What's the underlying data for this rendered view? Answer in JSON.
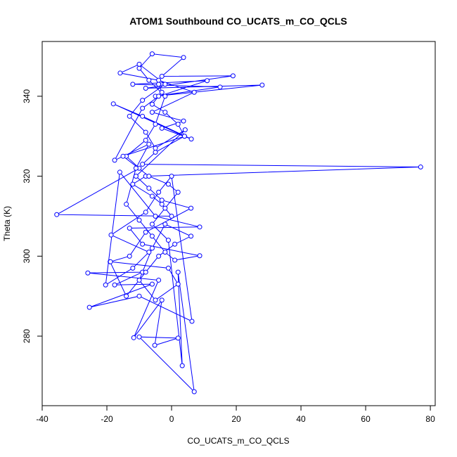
{
  "chart_data": {
    "type": "scatter",
    "title": "ATOM1 Southbound CO_UCATS_m_CO_QCLS",
    "x_label": "CO_UCATS_m_CO_QCLS",
    "y_label": "Theta (K)",
    "color": "#0000ff",
    "xlim": [
      -40,
      81.5
    ],
    "ylim": [
      262.6,
      353.7
    ],
    "xticks": [
      -40,
      -20,
      0,
      20,
      40,
      60,
      80
    ],
    "yticks": [
      280,
      300,
      320,
      340
    ],
    "x": [
      -4,
      -3,
      -6,
      -2,
      2,
      4,
      -5,
      -9,
      77,
      -8,
      -12,
      -6,
      -3,
      0,
      -35.5,
      -10,
      -14,
      -8,
      -5,
      -2,
      -7,
      -10,
      -6,
      3.7,
      -3,
      19,
      -8,
      28,
      -5,
      15,
      -12,
      11,
      -4,
      -9,
      -17.6,
      -7,
      -11,
      -14,
      -10,
      -6,
      -2,
      1,
      8.7,
      -9,
      -13,
      8.7,
      -5,
      -16,
      -20.4,
      -12,
      -7,
      -18.7,
      -8,
      -4,
      0,
      6.3,
      -10,
      -25.4,
      -6,
      -17.6,
      -9,
      -25.9,
      -4,
      -11.7,
      -3,
      -5.2,
      2,
      -10,
      7,
      2,
      3.3,
      -1,
      -6,
      -2,
      2,
      -1,
      -7,
      -15,
      4,
      -18,
      -9,
      6.1,
      -3,
      3.7,
      -6,
      7,
      -4,
      -15.9,
      -10,
      -2,
      -9,
      -13,
      -8,
      -5,
      4.2,
      -11,
      -7,
      -3,
      6,
      -8,
      -13,
      -19,
      -14,
      -8,
      -4,
      1,
      6,
      -2,
      -6,
      -10,
      -5,
      2,
      -1,
      -18.9
    ],
    "y": [
      343,
      341,
      338,
      336,
      333,
      330,
      326,
      323,
      322.3,
      320,
      318,
      315,
      313,
      310,
      310.4,
      322,
      325,
      329,
      333,
      340,
      344,
      347,
      350.6,
      349.7,
      345,
      345.1,
      342,
      342.8,
      340,
      342.3,
      343,
      343.9,
      340,
      337,
      324,
      328,
      322,
      313,
      309,
      305,
      301,
      299,
      300.1,
      303,
      307,
      307.3,
      310,
      321,
      292.8,
      297,
      301,
      305.3,
      311,
      316,
      320,
      283.7,
      290,
      287.2,
      293,
      292.8,
      296,
      295.8,
      294,
      279.6,
      289,
      277.7,
      279.5,
      279.8,
      266.1,
      296,
      272.6,
      304,
      308,
      312,
      316,
      318,
      320,
      325,
      330,
      338.1,
      335,
      329.3,
      332,
      333.8,
      336,
      341,
      344,
      345.8,
      348,
      343,
      339,
      335,
      331,
      327,
      331.6,
      320,
      317,
      314,
      312,
      306,
      300,
      298.6,
      290,
      296,
      300,
      303,
      305,
      308,
      302,
      294,
      289,
      293,
      297,
      298.6
    ]
  }
}
